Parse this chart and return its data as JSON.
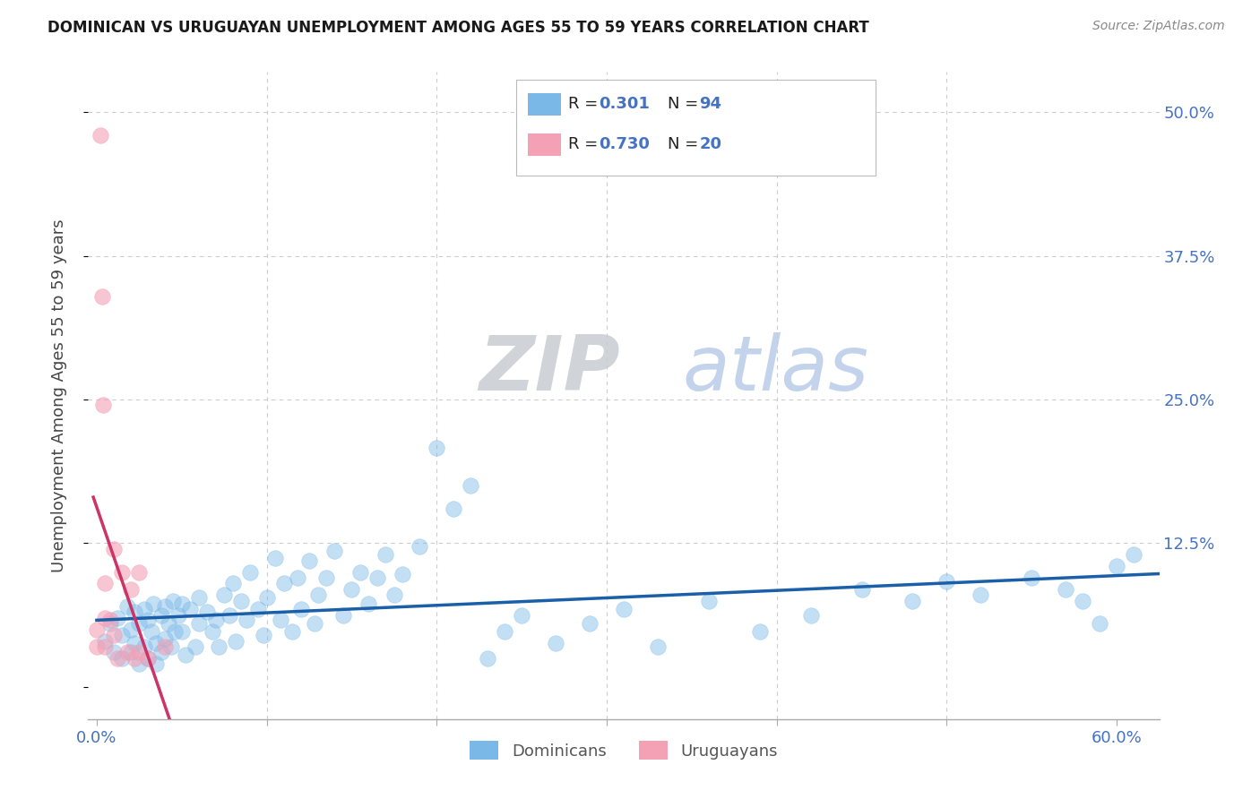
{
  "title": "DOMINICAN VS URUGUAYAN UNEMPLOYMENT AMONG AGES 55 TO 59 YEARS CORRELATION CHART",
  "source": "Source: ZipAtlas.com",
  "ylabel": "Unemployment Among Ages 55 to 59 years",
  "xlim_min": -0.005,
  "xlim_max": 0.625,
  "ylim_min": -0.028,
  "ylim_max": 0.535,
  "xtick_vals": [
    0.0,
    0.1,
    0.2,
    0.3,
    0.4,
    0.5,
    0.6
  ],
  "ytick_vals": [
    0.0,
    0.125,
    0.25,
    0.375,
    0.5
  ],
  "ytick_labels": [
    "",
    "12.5%",
    "25.0%",
    "37.5%",
    "50.0%"
  ],
  "xtick_labels": [
    "0.0%",
    "",
    "",
    "",
    "",
    "",
    "60.0%"
  ],
  "dominican_R": 0.301,
  "dominican_N": 94,
  "uruguayan_R": 0.73,
  "uruguayan_N": 20,
  "blue_scatter": "#7ab8e8",
  "blue_line": "#1a5fa8",
  "pink_scatter": "#f4a0b5",
  "pink_line": "#cc3366",
  "axis_tick_color": "#4472C4",
  "grid_color": "#cccccc",
  "title_color": "#1a1a1a",
  "source_color": "#888888",
  "legend_label_color": "#222222",
  "legend_value_color": "#4472C4",
  "bottom_legend_label_color": "#555555",
  "dom_x": [
    0.005,
    0.008,
    0.01,
    0.012,
    0.015,
    0.015,
    0.018,
    0.02,
    0.02,
    0.022,
    0.022,
    0.025,
    0.025,
    0.028,
    0.028,
    0.03,
    0.03,
    0.032,
    0.033,
    0.035,
    0.035,
    0.038,
    0.038,
    0.04,
    0.04,
    0.042,
    0.044,
    0.045,
    0.046,
    0.048,
    0.05,
    0.05,
    0.052,
    0.055,
    0.058,
    0.06,
    0.06,
    0.065,
    0.068,
    0.07,
    0.072,
    0.075,
    0.078,
    0.08,
    0.082,
    0.085,
    0.088,
    0.09,
    0.095,
    0.098,
    0.1,
    0.105,
    0.108,
    0.11,
    0.115,
    0.118,
    0.12,
    0.125,
    0.128,
    0.13,
    0.135,
    0.14,
    0.145,
    0.15,
    0.155,
    0.16,
    0.165,
    0.17,
    0.175,
    0.18,
    0.19,
    0.2,
    0.21,
    0.22,
    0.23,
    0.24,
    0.25,
    0.27,
    0.29,
    0.31,
    0.33,
    0.36,
    0.39,
    0.42,
    0.45,
    0.48,
    0.5,
    0.52,
    0.55,
    0.57,
    0.58,
    0.59,
    0.6,
    0.61
  ],
  "dom_y": [
    0.04,
    0.055,
    0.03,
    0.06,
    0.045,
    0.025,
    0.07,
    0.05,
    0.03,
    0.065,
    0.038,
    0.055,
    0.02,
    0.068,
    0.035,
    0.058,
    0.025,
    0.048,
    0.072,
    0.038,
    0.02,
    0.062,
    0.03,
    0.07,
    0.042,
    0.055,
    0.035,
    0.075,
    0.048,
    0.062,
    0.072,
    0.048,
    0.028,
    0.068,
    0.035,
    0.078,
    0.055,
    0.065,
    0.048,
    0.058,
    0.035,
    0.08,
    0.062,
    0.09,
    0.04,
    0.075,
    0.058,
    0.1,
    0.068,
    0.045,
    0.078,
    0.112,
    0.058,
    0.09,
    0.048,
    0.095,
    0.068,
    0.11,
    0.055,
    0.08,
    0.095,
    0.118,
    0.062,
    0.085,
    0.1,
    0.072,
    0.095,
    0.115,
    0.08,
    0.098,
    0.122,
    0.208,
    0.155,
    0.175,
    0.025,
    0.048,
    0.062,
    0.038,
    0.055,
    0.068,
    0.035,
    0.075,
    0.048,
    0.062,
    0.085,
    0.075,
    0.092,
    0.08,
    0.095,
    0.085,
    0.075,
    0.055,
    0.105,
    0.115
  ],
  "uru_x": [
    0.0,
    0.0,
    0.002,
    0.003,
    0.004,
    0.005,
    0.005,
    0.005,
    0.008,
    0.01,
    0.01,
    0.012,
    0.015,
    0.018,
    0.02,
    0.022,
    0.025,
    0.025,
    0.03,
    0.04
  ],
  "uru_y": [
    0.05,
    0.035,
    0.48,
    0.34,
    0.245,
    0.09,
    0.06,
    0.035,
    0.058,
    0.12,
    0.045,
    0.025,
    0.1,
    0.03,
    0.085,
    0.025,
    0.1,
    0.03,
    0.025,
    0.035
  ]
}
